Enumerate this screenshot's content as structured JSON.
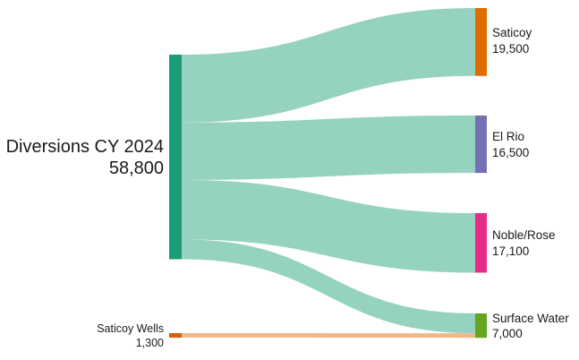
{
  "chart_data": {
    "type": "sankey",
    "sources": [
      {
        "id": "diversions",
        "label": "Diversions CY 2024",
        "value_label": "58,800",
        "value": 58800,
        "color": "#1b9e77"
      },
      {
        "id": "wells",
        "label": "Saticoy Wells",
        "value_label": "1,300",
        "value": 1300,
        "color": "#d95f02"
      }
    ],
    "targets": [
      {
        "id": "saticoy",
        "label": "Saticoy",
        "value_label": "19,500",
        "value": 19500,
        "color": "#e06c00"
      },
      {
        "id": "elrio",
        "label": "El Rio",
        "value_label": "16,500",
        "value": 16500,
        "color": "#7570b3"
      },
      {
        "id": "noble",
        "label": "Noble/Rose",
        "value_label": "17,100",
        "value": 17100,
        "color": "#e7298a"
      },
      {
        "id": "surface",
        "label": "Surface Water",
        "value_label": "7,000",
        "value": 7000,
        "color": "#66a61e"
      }
    ],
    "links": [
      {
        "source": "diversions",
        "target": "saticoy",
        "value": 19500,
        "color": "#96d2c0"
      },
      {
        "source": "diversions",
        "target": "elrio",
        "value": 16500,
        "color": "#96d2c0"
      },
      {
        "source": "diversions",
        "target": "noble",
        "value": 17100,
        "color": "#96d2c0"
      },
      {
        "source": "diversions",
        "target": "surface",
        "value": 5700,
        "color": "#96d2c0"
      },
      {
        "source": "wells",
        "target": "surface",
        "value": 1300,
        "color": "#f0b889"
      }
    ]
  }
}
